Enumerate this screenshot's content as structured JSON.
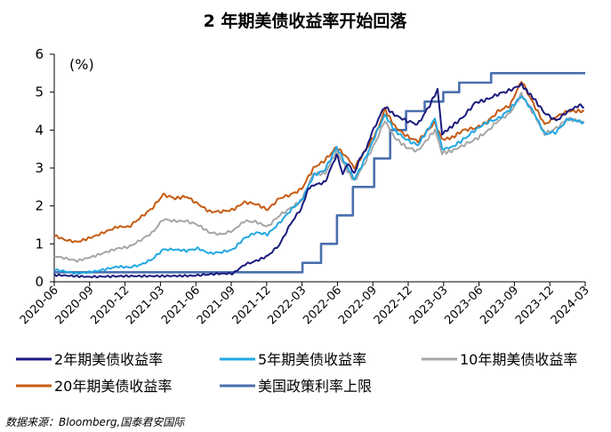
{
  "chart_data": {
    "type": "line",
    "title": "2 年期美债收益率开始回落",
    "unit_label": "(%)",
    "ylim": [
      0,
      6
    ],
    "y_ticks": [
      "0",
      "1",
      "2",
      "3",
      "4",
      "5",
      "6"
    ],
    "x_tick_labels": [
      "2020-06",
      "2020-09",
      "2020-12",
      "2021-03",
      "2021-06",
      "2021-09",
      "2021-12",
      "2022-03",
      "2022-06",
      "2022-09",
      "2022-12",
      "2023-03",
      "2023-06",
      "2023-09",
      "2023-12",
      "2024-03"
    ],
    "xlim": [
      "2020-06-01",
      "2024-03-31"
    ],
    "grid": false,
    "legend": "bottom",
    "series": [
      {
        "name": "2年期美债收益率",
        "color": "#1a1a7e",
        "points": [
          [
            "2020-06-01",
            0.18
          ],
          [
            "2020-09-01",
            0.13
          ],
          [
            "2020-12-01",
            0.15
          ],
          [
            "2021-03-01",
            0.15
          ],
          [
            "2021-06-01",
            0.16
          ],
          [
            "2021-08-01",
            0.21
          ],
          [
            "2021-09-15",
            0.22
          ],
          [
            "2021-10-15",
            0.45
          ],
          [
            "2021-11-15",
            0.55
          ],
          [
            "2021-12-15",
            0.68
          ],
          [
            "2022-01-15",
            0.97
          ],
          [
            "2022-02-15",
            1.55
          ],
          [
            "2022-03-15",
            1.95
          ],
          [
            "2022-04-01",
            2.45
          ],
          [
            "2022-04-15",
            2.55
          ],
          [
            "2022-05-15",
            2.62
          ],
          [
            "2022-06-15",
            3.35
          ],
          [
            "2022-07-01",
            2.85
          ],
          [
            "2022-07-15",
            3.12
          ],
          [
            "2022-08-01",
            2.85
          ],
          [
            "2022-08-15",
            3.25
          ],
          [
            "2022-09-01",
            3.5
          ],
          [
            "2022-09-15",
            3.9
          ],
          [
            "2022-10-01",
            4.25
          ],
          [
            "2022-10-20",
            4.62
          ],
          [
            "2022-11-15",
            4.4
          ],
          [
            "2022-12-15",
            4.25
          ],
          [
            "2023-01-15",
            4.15
          ],
          [
            "2023-02-15",
            4.65
          ],
          [
            "2023-03-08",
            5.07
          ],
          [
            "2023-03-20",
            3.9
          ],
          [
            "2023-04-15",
            4.1
          ],
          [
            "2023-05-15",
            4.35
          ],
          [
            "2023-06-15",
            4.72
          ],
          [
            "2023-07-15",
            4.8
          ],
          [
            "2023-08-15",
            4.95
          ],
          [
            "2023-09-15",
            5.05
          ],
          [
            "2023-10-15",
            5.2
          ],
          [
            "2023-11-01",
            5.0
          ],
          [
            "2023-11-15",
            4.85
          ],
          [
            "2023-12-15",
            4.45
          ],
          [
            "2024-01-15",
            4.25
          ],
          [
            "2024-02-15",
            4.5
          ],
          [
            "2024-03-15",
            4.65
          ],
          [
            "2024-03-28",
            4.6
          ]
        ]
      },
      {
        "name": "5年期美债收益率",
        "color": "#21a7e3",
        "points": [
          [
            "2020-06-01",
            0.32
          ],
          [
            "2020-08-01",
            0.22
          ],
          [
            "2020-09-15",
            0.27
          ],
          [
            "2020-11-15",
            0.4
          ],
          [
            "2020-12-15",
            0.38
          ],
          [
            "2021-01-15",
            0.45
          ],
          [
            "2021-02-15",
            0.6
          ],
          [
            "2021-03-15",
            0.85
          ],
          [
            "2021-04-15",
            0.85
          ],
          [
            "2021-05-15",
            0.82
          ],
          [
            "2021-06-15",
            0.88
          ],
          [
            "2021-07-15",
            0.75
          ],
          [
            "2021-08-15",
            0.78
          ],
          [
            "2021-09-15",
            0.85
          ],
          [
            "2021-10-15",
            1.15
          ],
          [
            "2021-11-15",
            1.3
          ],
          [
            "2021-12-15",
            1.25
          ],
          [
            "2022-01-15",
            1.55
          ],
          [
            "2022-02-15",
            1.9
          ],
          [
            "2022-03-15",
            2.15
          ],
          [
            "2022-04-15",
            2.8
          ],
          [
            "2022-05-15",
            2.95
          ],
          [
            "2022-06-15",
            3.55
          ],
          [
            "2022-07-15",
            3.0
          ],
          [
            "2022-08-01",
            2.7
          ],
          [
            "2022-09-01",
            3.3
          ],
          [
            "2022-10-01",
            4.0
          ],
          [
            "2022-10-20",
            4.4
          ],
          [
            "2022-11-15",
            4.0
          ],
          [
            "2022-12-15",
            3.75
          ],
          [
            "2023-01-15",
            3.6
          ],
          [
            "2023-03-01",
            4.3
          ],
          [
            "2023-03-20",
            3.5
          ],
          [
            "2023-04-15",
            3.55
          ],
          [
            "2023-05-15",
            3.75
          ],
          [
            "2023-06-15",
            4.0
          ],
          [
            "2023-07-15",
            4.2
          ],
          [
            "2023-08-15",
            4.3
          ],
          [
            "2023-09-15",
            4.55
          ],
          [
            "2023-10-15",
            4.9
          ],
          [
            "2023-11-15",
            4.5
          ],
          [
            "2023-12-15",
            3.9
          ],
          [
            "2024-01-15",
            3.95
          ],
          [
            "2024-02-15",
            4.3
          ],
          [
            "2024-03-28",
            4.2
          ]
        ]
      },
      {
        "name": "10年期美债收益率",
        "color": "#a6a6a6",
        "points": [
          [
            "2020-06-01",
            0.68
          ],
          [
            "2020-08-01",
            0.55
          ],
          [
            "2020-09-15",
            0.68
          ],
          [
            "2020-11-15",
            0.88
          ],
          [
            "2020-12-15",
            0.92
          ],
          [
            "2021-01-15",
            1.1
          ],
          [
            "2021-02-15",
            1.3
          ],
          [
            "2021-03-15",
            1.65
          ],
          [
            "2021-04-15",
            1.6
          ],
          [
            "2021-05-15",
            1.6
          ],
          [
            "2021-06-15",
            1.5
          ],
          [
            "2021-07-15",
            1.3
          ],
          [
            "2021-08-15",
            1.25
          ],
          [
            "2021-09-15",
            1.35
          ],
          [
            "2021-10-15",
            1.6
          ],
          [
            "2021-11-15",
            1.58
          ],
          [
            "2021-12-15",
            1.45
          ],
          [
            "2022-01-15",
            1.75
          ],
          [
            "2022-02-15",
            1.95
          ],
          [
            "2022-03-15",
            2.15
          ],
          [
            "2022-04-15",
            2.85
          ],
          [
            "2022-05-15",
            2.85
          ],
          [
            "2022-06-15",
            3.45
          ],
          [
            "2022-07-15",
            2.9
          ],
          [
            "2022-08-01",
            2.65
          ],
          [
            "2022-09-01",
            3.2
          ],
          [
            "2022-10-01",
            3.8
          ],
          [
            "2022-10-20",
            4.25
          ],
          [
            "2022-11-15",
            3.8
          ],
          [
            "2022-12-15",
            3.55
          ],
          [
            "2023-01-15",
            3.45
          ],
          [
            "2023-03-01",
            4.0
          ],
          [
            "2023-03-20",
            3.4
          ],
          [
            "2023-04-15",
            3.45
          ],
          [
            "2023-05-15",
            3.6
          ],
          [
            "2023-06-15",
            3.75
          ],
          [
            "2023-07-15",
            3.95
          ],
          [
            "2023-08-15",
            4.25
          ],
          [
            "2023-09-15",
            4.45
          ],
          [
            "2023-10-15",
            4.95
          ],
          [
            "2023-11-15",
            4.45
          ],
          [
            "2023-12-15",
            3.9
          ],
          [
            "2024-01-15",
            4.05
          ],
          [
            "2024-02-15",
            4.3
          ],
          [
            "2024-03-28",
            4.2
          ]
        ]
      },
      {
        "name": "20年期美债收益率",
        "color": "#c55a11",
        "points": [
          [
            "2020-06-01",
            1.22
          ],
          [
            "2020-07-01",
            1.1
          ],
          [
            "2020-08-01",
            1.05
          ],
          [
            "2020-09-15",
            1.2
          ],
          [
            "2020-11-15",
            1.45
          ],
          [
            "2020-12-15",
            1.45
          ],
          [
            "2021-01-15",
            1.7
          ],
          [
            "2021-02-15",
            1.95
          ],
          [
            "2021-03-15",
            2.3
          ],
          [
            "2021-04-15",
            2.2
          ],
          [
            "2021-05-15",
            2.25
          ],
          [
            "2021-06-15",
            2.05
          ],
          [
            "2021-07-15",
            1.85
          ],
          [
            "2021-08-15",
            1.85
          ],
          [
            "2021-09-15",
            1.9
          ],
          [
            "2021-10-15",
            2.1
          ],
          [
            "2021-11-15",
            2.05
          ],
          [
            "2021-12-15",
            1.9
          ],
          [
            "2022-01-15",
            2.2
          ],
          [
            "2022-02-15",
            2.3
          ],
          [
            "2022-03-15",
            2.45
          ],
          [
            "2022-04-15",
            3.0
          ],
          [
            "2022-05-15",
            3.2
          ],
          [
            "2022-06-15",
            3.55
          ],
          [
            "2022-07-15",
            3.25
          ],
          [
            "2022-08-01",
            3.0
          ],
          [
            "2022-09-01",
            3.5
          ],
          [
            "2022-10-01",
            4.0
          ],
          [
            "2022-10-20",
            4.55
          ],
          [
            "2022-11-15",
            4.1
          ],
          [
            "2022-12-15",
            3.85
          ],
          [
            "2023-01-15",
            3.7
          ],
          [
            "2023-03-01",
            4.2
          ],
          [
            "2023-03-20",
            3.75
          ],
          [
            "2023-04-15",
            3.8
          ],
          [
            "2023-05-15",
            4.0
          ],
          [
            "2023-06-15",
            4.05
          ],
          [
            "2023-07-15",
            4.2
          ],
          [
            "2023-08-15",
            4.5
          ],
          [
            "2023-09-15",
            4.65
          ],
          [
            "2023-10-15",
            5.3
          ],
          [
            "2023-11-15",
            4.7
          ],
          [
            "2023-12-15",
            4.15
          ],
          [
            "2024-01-15",
            4.35
          ],
          [
            "2024-02-15",
            4.5
          ],
          [
            "2024-03-28",
            4.5
          ]
        ]
      },
      {
        "name": "美国政策利率上限",
        "color": "#4a6fad",
        "step": true,
        "points": [
          [
            "2020-06-01",
            0.25
          ],
          [
            "2022-03-17",
            0.5
          ],
          [
            "2022-05-05",
            1.0
          ],
          [
            "2022-06-16",
            1.75
          ],
          [
            "2022-07-28",
            2.5
          ],
          [
            "2022-09-22",
            3.25
          ],
          [
            "2022-11-03",
            4.0
          ],
          [
            "2022-12-15",
            4.5
          ],
          [
            "2023-02-02",
            4.75
          ],
          [
            "2023-03-23",
            5.0
          ],
          [
            "2023-05-04",
            5.25
          ],
          [
            "2023-07-27",
            5.5
          ],
          [
            "2024-03-31",
            5.5
          ]
        ]
      }
    ],
    "source_text": "数据来源：Bloomberg,国泰君安国际"
  }
}
